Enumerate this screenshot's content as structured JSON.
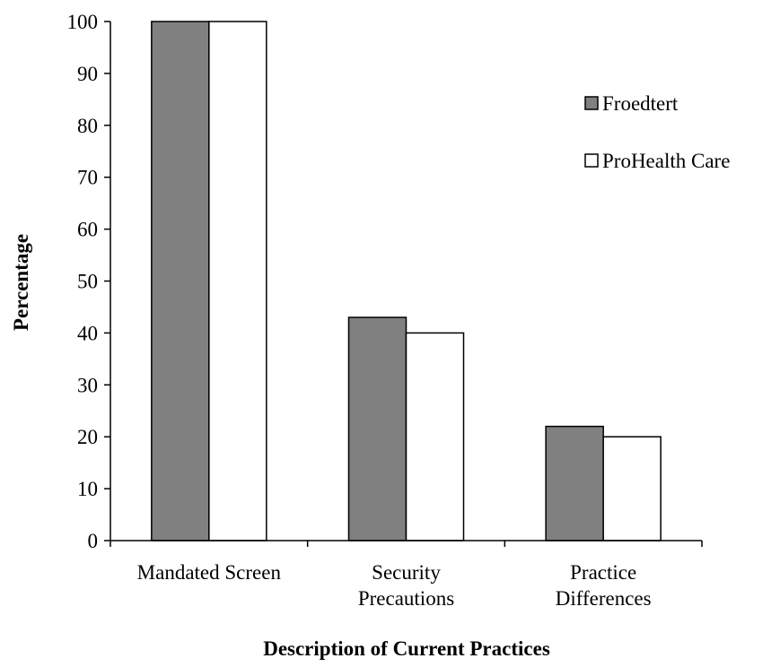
{
  "chart_data": {
    "type": "bar",
    "title": "",
    "xlabel": "Description of Current Practices",
    "ylabel": "Percentage",
    "ylim": [
      0,
      100
    ],
    "yticks": [
      0,
      10,
      20,
      30,
      40,
      50,
      60,
      70,
      80,
      90,
      100
    ],
    "categories": [
      [
        "Mandated Screen"
      ],
      [
        "Security",
        "Precautions"
      ],
      [
        "Practice",
        "Differences"
      ]
    ],
    "series": [
      {
        "name": "Froedtert",
        "values": [
          100,
          43,
          22
        ],
        "color": "#808080"
      },
      {
        "name": "ProHealth Care",
        "values": [
          100,
          40,
          20
        ],
        "color": "#ffffff"
      }
    ],
    "grid": false,
    "legend_position": "top-right"
  }
}
